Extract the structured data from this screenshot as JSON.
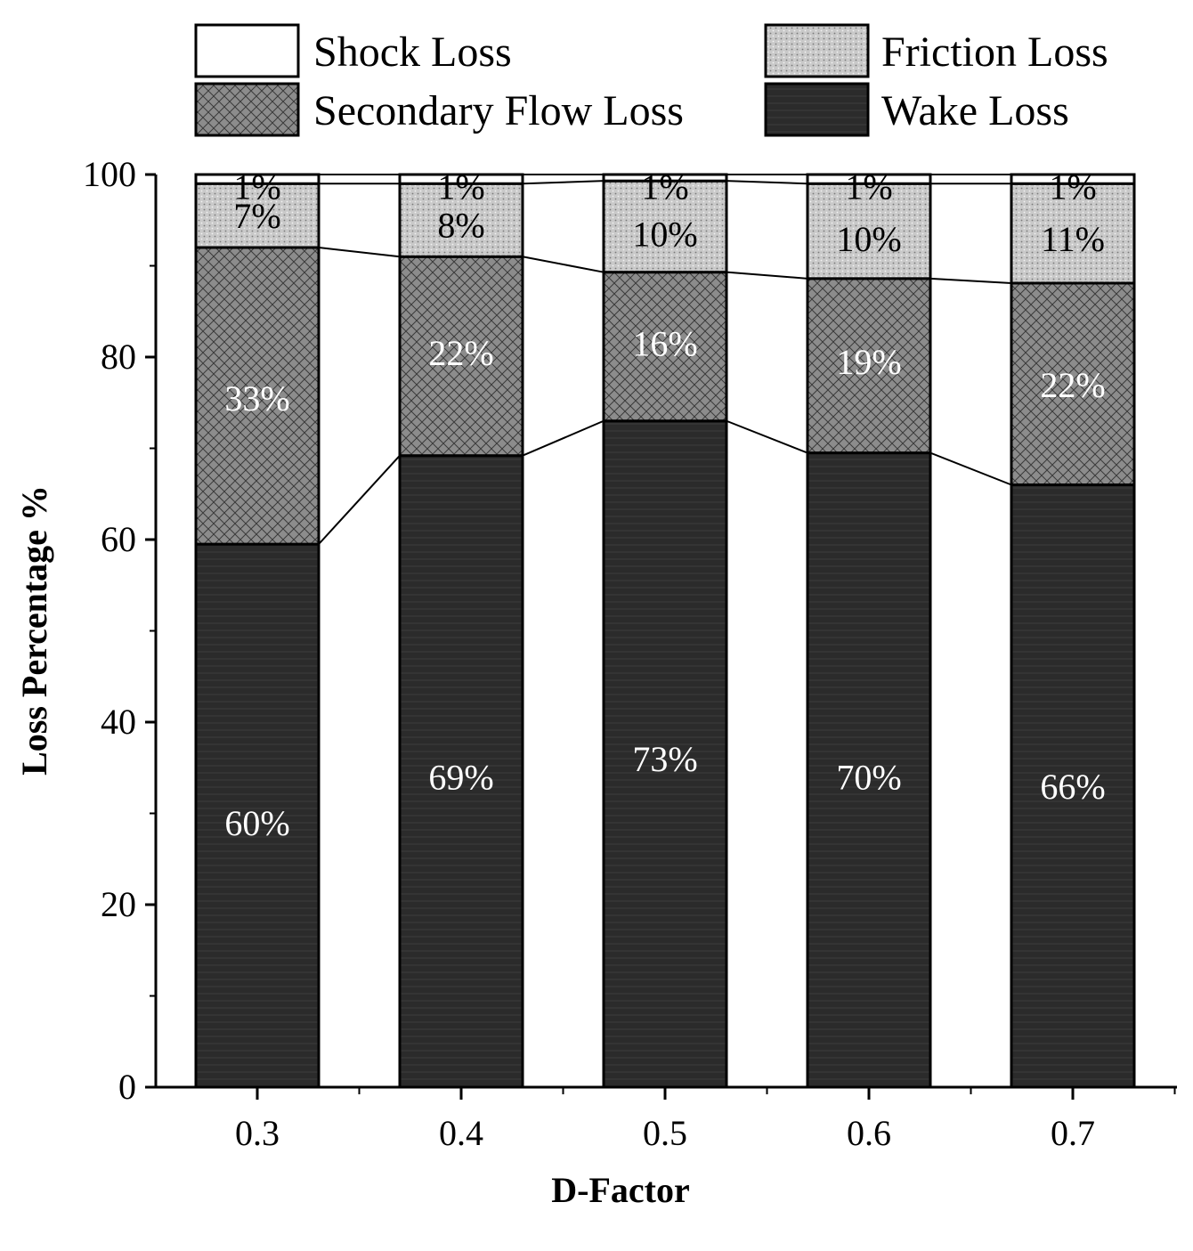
{
  "chart_data": {
    "type": "bar",
    "stacked": true,
    "categories": [
      "0.3",
      "0.4",
      "0.5",
      "0.6",
      "0.7"
    ],
    "series": [
      {
        "name": "Wake Loss",
        "values": [
          59.5,
          69.2,
          73.0,
          69.5,
          66.0
        ],
        "labels": [
          "60%",
          "69%",
          "73%",
          "70%",
          "66%"
        ],
        "label_values": [
          29,
          34,
          36,
          34,
          33
        ],
        "pattern": "wake",
        "label_color": "#ffffff"
      },
      {
        "name": "Secondary Flow Loss",
        "values": [
          32.5,
          21.8,
          16.3,
          19.1,
          22.1
        ],
        "labels": [
          "33%",
          "22%",
          "16%",
          "19%",
          "22%"
        ],
        "label_values": [
          75.5,
          80.5,
          81.5,
          79.5,
          77
        ],
        "pattern": "secondary",
        "label_color": "#ffffff"
      },
      {
        "name": "Friction Loss",
        "values": [
          7.0,
          8.0,
          10.0,
          10.4,
          10.9
        ],
        "labels": [
          "7%",
          "8%",
          "10%",
          "10%",
          "11%"
        ],
        "label_values": [
          95.5,
          94.5,
          93.5,
          93,
          93
        ],
        "pattern": "friction",
        "label_color": "#000000"
      },
      {
        "name": "Shock Loss",
        "values": [
          1.0,
          1.0,
          0.7,
          1.0,
          1.0
        ],
        "labels": [
          "1%",
          "1%",
          "1%",
          "1%",
          "1%"
        ],
        "label_values": [
          98.7,
          98.7,
          98.7,
          98.7,
          98.7
        ],
        "pattern": "shock",
        "label_color": "#000000"
      }
    ],
    "legend_order": [
      "Shock Loss",
      "Friction Loss",
      "Secondary Flow Loss",
      "Wake Loss"
    ],
    "xlabel": "D-Factor",
    "ylabel": "Loss Percentage %",
    "ylim": [
      0,
      100
    ],
    "yticks": [
      0,
      20,
      40,
      60,
      80,
      100
    ],
    "legend_position": "top",
    "connector_lines": true,
    "grid": false
  }
}
